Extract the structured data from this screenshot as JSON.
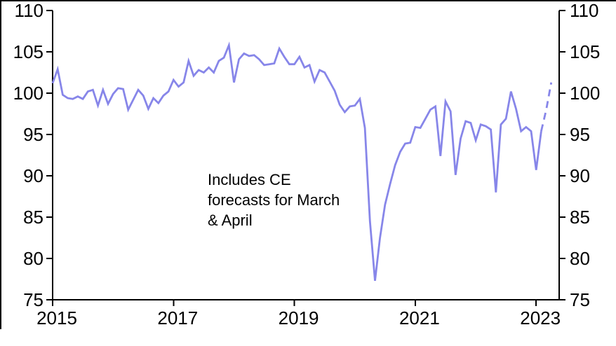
{
  "chart_data": {
    "type": "line",
    "title": "",
    "xlabel": "",
    "ylabel": "",
    "x_tick_labels": [
      "2015",
      "2017",
      "2019",
      "2021",
      "2023"
    ],
    "x_tick_years": [
      2015,
      2017,
      2019,
      2021,
      2023
    ],
    "y_tick_values": [
      75,
      80,
      85,
      90,
      95,
      100,
      105,
      110
    ],
    "y_tick_labels": [
      "75",
      "80",
      "85",
      "90",
      "95",
      "100",
      "105",
      "110"
    ],
    "ylim": [
      75,
      110
    ],
    "x_range": [
      "2015-01",
      "2023-04"
    ],
    "grid": "off",
    "legend": "none",
    "dual_y_axis": true,
    "axis_color": "#000000",
    "background_color": "#ffffff",
    "line_color": "#8786e9",
    "series": [
      {
        "name": "index-with-ce-forecasts",
        "frequency": "monthly",
        "start": "2015-01",
        "forecast_tail_points": 2,
        "values": [
          101.2,
          102.9,
          99.8,
          99.4,
          99.3,
          99.6,
          99.3,
          100.2,
          100.4,
          98.5,
          100.4,
          98.7,
          99.9,
          100.6,
          100.5,
          98.0,
          99.2,
          100.4,
          99.7,
          98.1,
          99.4,
          98.8,
          99.7,
          100.2,
          101.6,
          100.8,
          101.3,
          103.9,
          102.1,
          102.8,
          102.5,
          103.1,
          102.5,
          103.9,
          104.3,
          105.8,
          101.3,
          104.1,
          104.8,
          104.5,
          104.6,
          104.1,
          103.4,
          103.5,
          103.6,
          105.4,
          104.4,
          103.5,
          103.5,
          104.4,
          103.1,
          103.4,
          101.4,
          102.8,
          102.5,
          101.4,
          100.3,
          98.6,
          97.7,
          98.4,
          98.5,
          99.3,
          95.8,
          84.5,
          77.3,
          82.5,
          86.5,
          89.0,
          91.3,
          92.9,
          93.9,
          94.0,
          95.9,
          95.8,
          96.9,
          98.0,
          98.4,
          92.4,
          99.0,
          97.8,
          90.1,
          94.5,
          96.6,
          96.4,
          94.3,
          96.2,
          96.0,
          95.6,
          88.0,
          96.2,
          96.9,
          100.2,
          98.1,
          95.4,
          95.9,
          95.4,
          90.7,
          95.4,
          98.0,
          101.3
        ]
      }
    ],
    "annotation": {
      "lines": [
        "Includes CE",
        "forecasts for March",
        "& April"
      ]
    }
  }
}
